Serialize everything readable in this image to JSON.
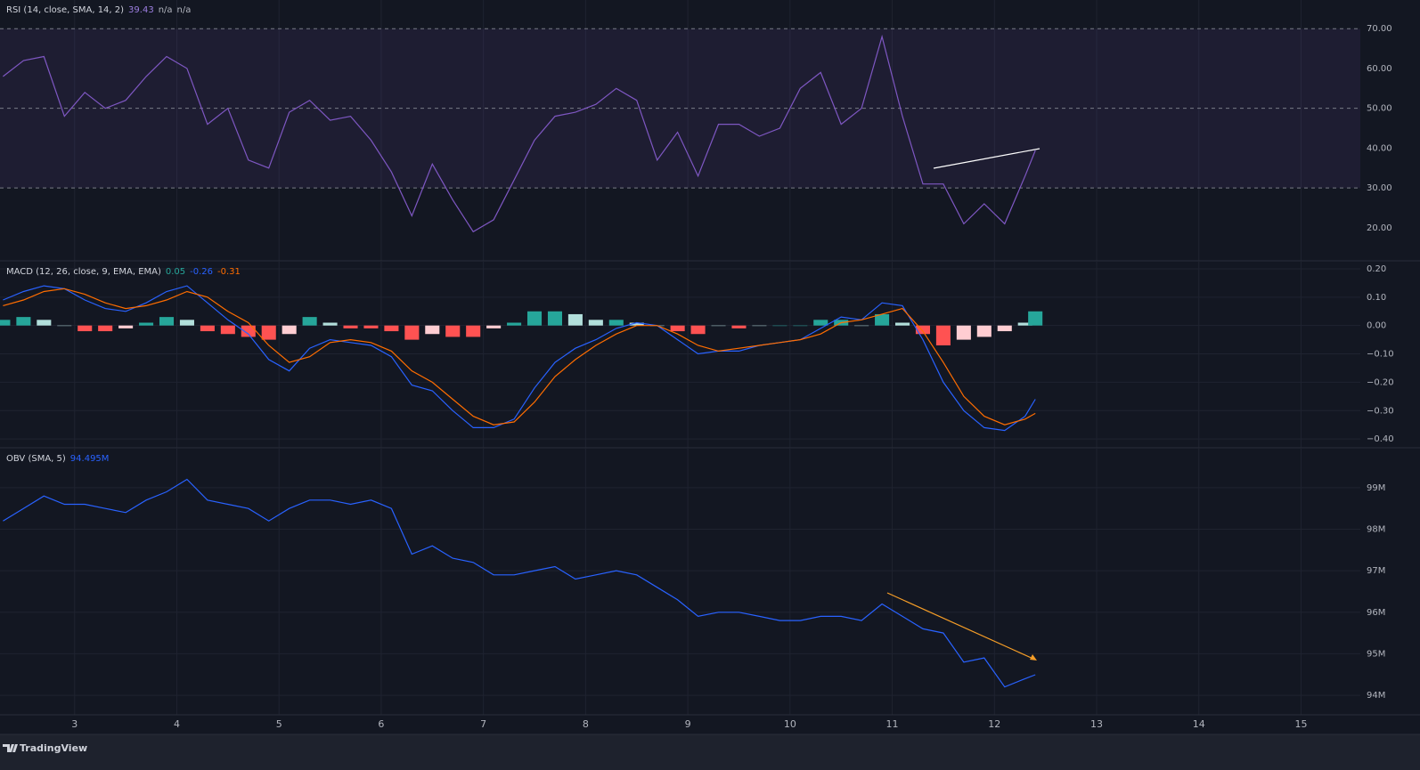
{
  "chart_data": [
    {
      "type": "line",
      "legend": {
        "label": "RSI (14, close, SMA, 14, 2)",
        "items": [
          {
            "text": "39.43",
            "color": "#9c7ee0"
          },
          {
            "text": "n/a",
            "color": "#b2b5be"
          },
          {
            "text": "n/a",
            "color": "#b2b5be"
          }
        ]
      },
      "band": {
        "upper": 70,
        "middle": 50,
        "lower": 30,
        "color": "#7e57c2"
      },
      "xlim": [
        2.27,
        15.58
      ],
      "ylim": [
        11.7,
        77.2
      ],
      "yticks": [
        {
          "value": 70,
          "label": "70.00"
        },
        {
          "value": 60,
          "label": "60.00"
        },
        {
          "value": 50,
          "label": "50.00"
        },
        {
          "value": 40,
          "label": "40.00"
        },
        {
          "value": 30,
          "label": "30.00"
        },
        {
          "value": 20,
          "label": "20.00"
        }
      ],
      "x": [
        2.3,
        2.5,
        2.7,
        2.9,
        3.1,
        3.3,
        3.5,
        3.7,
        3.9,
        4.1,
        4.3,
        4.5,
        4.7,
        4.9,
        5.1,
        5.3,
        5.5,
        5.7,
        5.9,
        6.1,
        6.3,
        6.5,
        6.7,
        6.9,
        7.1,
        7.3,
        7.5,
        7.7,
        7.9,
        8.1,
        8.3,
        8.5,
        8.7,
        8.9,
        9.1,
        9.3,
        9.5,
        9.7,
        9.9,
        10.1,
        10.3,
        10.5,
        10.7,
        10.9,
        11.1,
        11.3,
        11.5,
        11.7,
        11.9,
        12.1,
        12.3,
        12.4
      ],
      "series": [
        {
          "type": "line",
          "color": "#7e57c2",
          "values": [
            58,
            62,
            63,
            48,
            54,
            50,
            52,
            58,
            63,
            60,
            46,
            50,
            37,
            35,
            49,
            52,
            47,
            48,
            42,
            34,
            23,
            36,
            27,
            19,
            22,
            32,
            42,
            48,
            49,
            51,
            55,
            52,
            37,
            44,
            33,
            46,
            46,
            43,
            45,
            55,
            59,
            46,
            50,
            68,
            48,
            31,
            31,
            21,
            26,
            21,
            33,
            39.43
          ]
        }
      ]
    },
    {
      "type": "combo",
      "legend": {
        "label": "MACD (12, 26, close, 9, EMA, EMA)",
        "items": [
          {
            "text": "0.05",
            "color": "#26a69a"
          },
          {
            "text": "-0.26",
            "color": "#2962ff"
          },
          {
            "text": "-0.31",
            "color": "#ff6d00"
          }
        ]
      },
      "xlim": [
        2.27,
        15.58
      ],
      "ylim": [
        -0.431,
        0.225
      ],
      "yticks": [
        {
          "value": 0.2,
          "label": "0.20"
        },
        {
          "value": 0.1,
          "label": "0.10"
        },
        {
          "value": 0,
          "label": "0.00"
        },
        {
          "value": -0.1,
          "label": "−0.10"
        },
        {
          "value": -0.2,
          "label": "−0.20"
        },
        {
          "value": -0.3,
          "label": "−0.30"
        },
        {
          "value": -0.4,
          "label": "−0.40"
        }
      ],
      "x": [
        2.3,
        2.5,
        2.7,
        2.9,
        3.1,
        3.3,
        3.5,
        3.7,
        3.9,
        4.1,
        4.3,
        4.5,
        4.7,
        4.9,
        5.1,
        5.3,
        5.5,
        5.7,
        5.9,
        6.1,
        6.3,
        6.5,
        6.7,
        6.9,
        7.1,
        7.3,
        7.5,
        7.7,
        7.9,
        8.1,
        8.3,
        8.5,
        8.7,
        8.9,
        9.1,
        9.3,
        9.5,
        9.7,
        9.9,
        10.1,
        10.3,
        10.5,
        10.7,
        10.9,
        11.1,
        11.3,
        11.5,
        11.7,
        11.9,
        12.1,
        12.3,
        12.4
      ],
      "series": [
        {
          "type": "histogram",
          "color": "#26a69a",
          "values": [
            0.02,
            0.03,
            0.02,
            0.0,
            -0.02,
            -0.02,
            -0.01,
            0.01,
            0.03,
            0.02,
            -0.02,
            -0.03,
            -0.04,
            -0.05,
            -0.03,
            0.03,
            0.01,
            -0.01,
            -0.01,
            -0.02,
            -0.05,
            -0.03,
            -0.04,
            -0.04,
            -0.01,
            0.01,
            0.05,
            0.05,
            0.04,
            0.02,
            0.02,
            0.01,
            0.0,
            -0.02,
            -0.03,
            0.0,
            -0.01,
            0.0,
            0.0,
            0.0,
            0.02,
            0.02,
            0.0,
            0.04,
            0.01,
            -0.03,
            -0.07,
            -0.05,
            -0.04,
            -0.02,
            0.01,
            0.05
          ]
        },
        {
          "type": "line",
          "color": "#2962ff",
          "values": [
            0.09,
            0.12,
            0.14,
            0.13,
            0.09,
            0.06,
            0.05,
            0.08,
            0.12,
            0.14,
            0.08,
            0.02,
            -0.03,
            -0.12,
            -0.16,
            -0.08,
            -0.05,
            -0.06,
            -0.07,
            -0.11,
            -0.21,
            -0.23,
            -0.3,
            -0.36,
            -0.36,
            -0.33,
            -0.22,
            -0.13,
            -0.08,
            -0.05,
            -0.01,
            0.01,
            0.0,
            -0.05,
            -0.1,
            -0.09,
            -0.09,
            -0.07,
            -0.06,
            -0.05,
            -0.01,
            0.03,
            0.02,
            0.08,
            0.07,
            -0.05,
            -0.2,
            -0.3,
            -0.36,
            -0.37,
            -0.32,
            -0.26
          ]
        },
        {
          "type": "line",
          "color": "#ff6d00",
          "values": [
            0.07,
            0.09,
            0.12,
            0.13,
            0.11,
            0.08,
            0.06,
            0.07,
            0.09,
            0.12,
            0.1,
            0.05,
            0.01,
            -0.07,
            -0.13,
            -0.11,
            -0.06,
            -0.05,
            -0.06,
            -0.09,
            -0.16,
            -0.2,
            -0.26,
            -0.32,
            -0.35,
            -0.34,
            -0.27,
            -0.18,
            -0.12,
            -0.07,
            -0.03,
            0.0,
            0.0,
            -0.03,
            -0.07,
            -0.09,
            -0.08,
            -0.07,
            -0.06,
            -0.05,
            -0.03,
            0.01,
            0.02,
            0.04,
            0.06,
            -0.02,
            -0.13,
            -0.25,
            -0.32,
            -0.35,
            -0.33,
            -0.31
          ]
        }
      ]
    },
    {
      "type": "line",
      "legend": {
        "label": "OBV (SMA, 5)",
        "items": [
          {
            "text": "94.495M",
            "color": "#2962ff"
          }
        ]
      },
      "xlim": [
        2.27,
        15.58
      ],
      "ylim": [
        93.53,
        99.94
      ],
      "yticks": [
        {
          "value": 99,
          "label": "99M"
        },
        {
          "value": 98,
          "label": "98M"
        },
        {
          "value": 97,
          "label": "97M"
        },
        {
          "value": 96,
          "label": "96M"
        },
        {
          "value": 95,
          "label": "95M"
        },
        {
          "value": 94,
          "label": "94M"
        }
      ],
      "xticks": [
        3,
        4,
        5,
        6,
        7,
        8,
        9,
        10,
        11,
        12,
        13,
        14,
        15
      ],
      "x": [
        2.3,
        2.5,
        2.7,
        2.9,
        3.1,
        3.3,
        3.5,
        3.7,
        3.9,
        4.1,
        4.3,
        4.5,
        4.7,
        4.9,
        5.1,
        5.3,
        5.5,
        5.7,
        5.9,
        6.1,
        6.3,
        6.5,
        6.7,
        6.9,
        7.1,
        7.3,
        7.5,
        7.7,
        7.9,
        8.1,
        8.3,
        8.5,
        8.7,
        8.9,
        9.1,
        9.3,
        9.5,
        9.7,
        9.9,
        10.1,
        10.3,
        10.5,
        10.7,
        10.9,
        11.1,
        11.3,
        11.5,
        11.7,
        11.9,
        12.1,
        12.3,
        12.4
      ],
      "series": [
        {
          "type": "line",
          "color": "#2962ff",
          "values": [
            98.2,
            98.5,
            98.8,
            98.6,
            98.6,
            98.5,
            98.4,
            98.7,
            98.9,
            99.2,
            98.7,
            98.6,
            98.5,
            98.2,
            98.5,
            98.7,
            98.7,
            98.6,
            98.7,
            98.5,
            97.4,
            97.6,
            97.3,
            97.2,
            96.9,
            96.9,
            97.0,
            97.1,
            96.8,
            96.9,
            97.0,
            96.9,
            96.6,
            96.3,
            95.9,
            96.0,
            96.0,
            95.9,
            95.8,
            95.8,
            95.9,
            95.9,
            95.8,
            96.2,
            95.9,
            95.6,
            95.5,
            94.8,
            94.9,
            94.2,
            94.4,
            94.495
          ]
        }
      ]
    }
  ],
  "footer": {
    "brand": "TradingView"
  }
}
